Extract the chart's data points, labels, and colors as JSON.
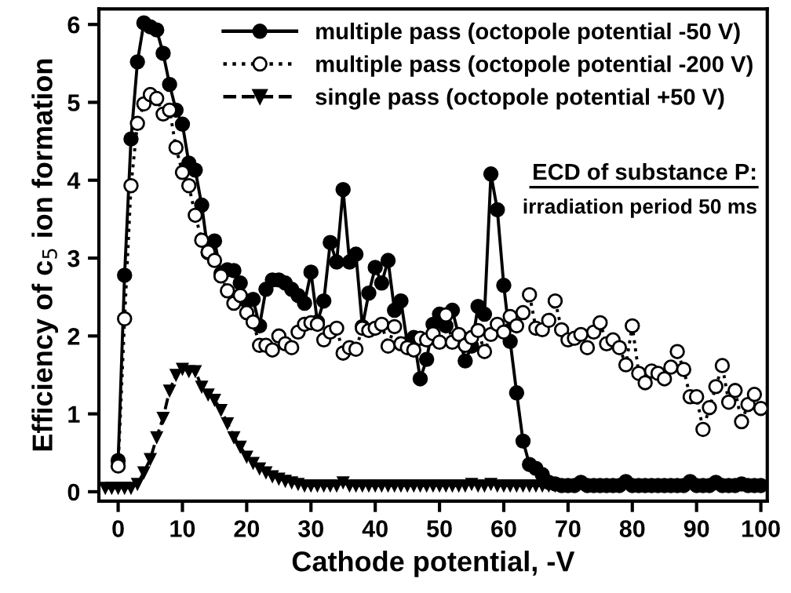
{
  "chart_data": {
    "type": "line",
    "xlabel": "Cathode potential, -V",
    "ylabel": "Efficiency of c$_{5}$ ion formation",
    "xlim": [
      -3,
      101
    ],
    "ylim": [
      -0.12,
      6.2
    ],
    "xticks": [
      0,
      10,
      20,
      30,
      40,
      50,
      60,
      70,
      80,
      90,
      100
    ],
    "yticks": [
      0,
      1,
      2,
      3,
      4,
      5,
      6
    ],
    "legend": "top right",
    "grid": false,
    "annotations": [
      "ECD of substance P:",
      "irradiation period 50 ms"
    ],
    "series": [
      {
        "name": "multiple pass (octopole potential -50 V)",
        "color": "#000000",
        "marker": "circle",
        "line_style": "solid",
        "x": [
          0,
          1,
          2,
          3,
          4,
          5,
          6,
          7,
          8,
          9,
          10,
          11,
          12,
          13,
          14,
          15,
          16,
          17,
          18,
          19,
          20,
          21,
          22,
          23,
          24,
          25,
          26,
          27,
          28,
          29,
          30,
          31,
          32,
          33,
          34,
          35,
          36,
          37,
          38,
          39,
          40,
          41,
          42,
          43,
          44,
          45,
          46,
          47,
          48,
          49,
          50,
          51,
          52,
          53,
          54,
          55,
          56,
          57,
          58,
          59,
          60,
          61,
          62,
          63,
          64,
          65,
          66,
          67,
          68,
          69,
          70,
          71,
          72,
          73,
          74,
          75,
          76,
          77,
          78,
          79,
          80,
          81,
          82,
          83,
          84,
          85,
          86,
          87,
          88,
          89,
          90,
          91,
          92,
          93,
          94,
          95,
          96,
          97,
          98,
          99,
          100
        ],
        "values": [
          0.4,
          2.78,
          4.53,
          5.52,
          6.02,
          5.97,
          5.93,
          5.63,
          5.23,
          4.9,
          4.72,
          4.22,
          4.13,
          3.68,
          3.07,
          3.22,
          2.8,
          2.85,
          2.84,
          2.68,
          2.45,
          2.47,
          2.13,
          2.6,
          2.72,
          2.72,
          2.68,
          2.6,
          2.52,
          2.42,
          2.82,
          2.18,
          2.45,
          3.2,
          2.95,
          3.88,
          2.95,
          3.05,
          2.12,
          2.55,
          2.88,
          2.68,
          2.97,
          2.33,
          2.45,
          1.9,
          1.98,
          1.45,
          1.7,
          2.15,
          2.28,
          2.13,
          2.33,
          2.0,
          1.68,
          1.87,
          2.38,
          2.28,
          4.08,
          3.62,
          2.65,
          1.93,
          1.27,
          0.65,
          0.35,
          0.3,
          0.22,
          0.12,
          0.1,
          0.08,
          0.08,
          0.08,
          0.12,
          0.08,
          0.08,
          0.08,
          0.08,
          0.08,
          0.08,
          0.13,
          0.08,
          0.08,
          0.08,
          0.08,
          0.08,
          0.08,
          0.08,
          0.08,
          0.08,
          0.13,
          0.08,
          0.08,
          0.08,
          0.12,
          0.08,
          0.08,
          0.08,
          0.1,
          0.08,
          0.08,
          0.08
        ]
      },
      {
        "name": "multiple pass (octopole potential -200 V)",
        "color": "#000000",
        "marker": "circle",
        "line_style": "dotted",
        "x": [
          0,
          1,
          2,
          3,
          4,
          5,
          6,
          7,
          8,
          9,
          10,
          11,
          12,
          13,
          14,
          15,
          16,
          17,
          18,
          19,
          20,
          21,
          22,
          23,
          24,
          25,
          26,
          27,
          28,
          29,
          30,
          31,
          32,
          33,
          34,
          35,
          36,
          37,
          38,
          39,
          40,
          41,
          42,
          43,
          44,
          45,
          46,
          47,
          48,
          49,
          50,
          51,
          52,
          53,
          54,
          55,
          56,
          57,
          58,
          59,
          60,
          61,
          62,
          63,
          64,
          65,
          66,
          67,
          68,
          69,
          70,
          71,
          72,
          73,
          74,
          75,
          76,
          77,
          78,
          79,
          80,
          81,
          82,
          83,
          84,
          85,
          86,
          87,
          88,
          89,
          90,
          91,
          92,
          93,
          94,
          95,
          96,
          97,
          98,
          99,
          100
        ],
        "values": [
          0.33,
          2.22,
          3.93,
          4.73,
          4.98,
          5.1,
          5.05,
          4.85,
          4.9,
          4.42,
          4.1,
          3.93,
          3.55,
          3.23,
          3.08,
          2.97,
          2.77,
          2.58,
          2.42,
          2.52,
          2.3,
          2.18,
          1.88,
          1.88,
          1.82,
          2.0,
          1.9,
          1.85,
          2.05,
          2.15,
          2.17,
          2.15,
          1.95,
          2.05,
          2.1,
          1.78,
          1.85,
          1.83,
          2.1,
          2.07,
          2.1,
          2.15,
          1.87,
          2.12,
          1.9,
          1.85,
          1.82,
          1.97,
          1.95,
          2.03,
          1.92,
          2.27,
          1.92,
          2.02,
          1.88,
          1.98,
          2.07,
          1.8,
          2.02,
          2.15,
          2.05,
          2.25,
          2.13,
          2.3,
          2.53,
          2.1,
          2.08,
          2.2,
          2.45,
          2.08,
          1.95,
          1.97,
          2.02,
          1.85,
          2.05,
          2.17,
          1.9,
          1.95,
          1.85,
          1.63,
          2.13,
          1.52,
          1.4,
          1.55,
          1.52,
          1.45,
          1.6,
          1.8,
          1.57,
          1.22,
          1.22,
          0.8,
          1.08,
          1.35,
          1.62,
          1.15,
          1.3,
          0.9,
          1.12,
          1.25,
          1.07
        ]
      },
      {
        "name": "single pass (octopole potential +50 V)",
        "color": "#000000",
        "marker": "triangle",
        "line_style": "dashed",
        "x": [
          -2,
          -1,
          0,
          1,
          2,
          3,
          4,
          5,
          6,
          7,
          8,
          9,
          10,
          11,
          12,
          13,
          14,
          15,
          16,
          17,
          18,
          19,
          20,
          21,
          22,
          23,
          24,
          25,
          26,
          27,
          28,
          29,
          30,
          31,
          32,
          33,
          34,
          35,
          36,
          37,
          38,
          39,
          40,
          41,
          42,
          43,
          44,
          45,
          46,
          47,
          48,
          49,
          50,
          51,
          52,
          53,
          54,
          55,
          56,
          57,
          58,
          59,
          60,
          61,
          62,
          63,
          64,
          65,
          66,
          67,
          68
        ],
        "values": [
          0.05,
          0.05,
          0.05,
          0.05,
          0.05,
          0.1,
          0.25,
          0.42,
          0.7,
          0.95,
          1.3,
          1.5,
          1.58,
          1.55,
          1.55,
          1.35,
          1.25,
          1.18,
          1.05,
          0.88,
          0.7,
          0.58,
          0.45,
          0.37,
          0.3,
          0.25,
          0.2,
          0.17,
          0.14,
          0.12,
          0.1,
          0.08,
          0.08,
          0.08,
          0.08,
          0.08,
          0.08,
          0.12,
          0.08,
          0.08,
          0.08,
          0.08,
          0.08,
          0.08,
          0.08,
          0.08,
          0.08,
          0.08,
          0.08,
          0.08,
          0.08,
          0.08,
          0.08,
          0.08,
          0.08,
          0.08,
          0.08,
          0.1,
          0.08,
          0.08,
          0.1,
          0.08,
          0.08,
          0.08,
          0.08,
          0.08,
          0.08,
          0.08,
          0.08,
          0.08,
          0.08
        ]
      }
    ]
  }
}
